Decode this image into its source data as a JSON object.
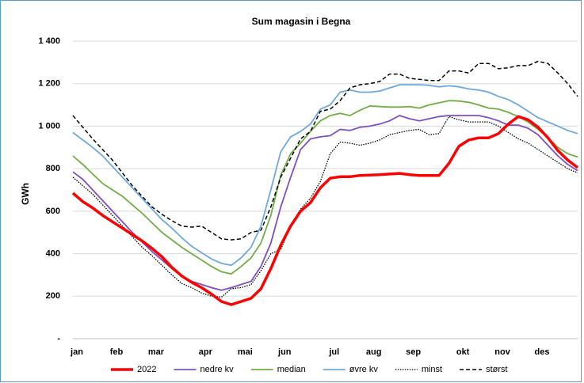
{
  "chart_data": {
    "type": "line",
    "title": "Sum magasin i Begna",
    "y_label": "GWh",
    "categories": [
      "jan",
      null,
      null,
      null,
      "feb",
      null,
      null,
      null,
      "mar",
      null,
      null,
      null,
      null,
      "apr",
      null,
      null,
      null,
      "mai",
      null,
      null,
      null,
      "jun",
      null,
      null,
      null,
      null,
      "jul",
      null,
      null,
      null,
      "aug",
      null,
      null,
      null,
      "sep",
      null,
      null,
      null,
      null,
      "okt",
      null,
      null,
      null,
      "nov",
      null,
      null,
      null,
      "des",
      null,
      null,
      null,
      null
    ],
    "ylim": [
      0,
      1400
    ],
    "yticks": [
      {
        "value": 0,
        "label": "-"
      },
      200,
      400,
      600,
      800,
      {
        "value": 1000,
        "label": "1 000"
      },
      {
        "value": 1200,
        "label": "1 200"
      },
      {
        "value": 1400,
        "label": "1 400"
      }
    ],
    "grid": true,
    "legend": "bottom",
    "series": [
      {
        "name": "2022",
        "color": "#ff0000",
        "style": "solid-thick",
        "values": [
          685,
          645,
          615,
          580,
          550,
          520,
          490,
          460,
          425,
          385,
          335,
          295,
          265,
          240,
          210,
          175,
          160,
          175,
          190,
          235,
          330,
          440,
          530,
          600,
          640,
          710,
          755,
          762,
          762,
          768,
          770,
          772,
          775,
          778,
          772,
          768,
          768,
          768,
          825,
          905,
          935,
          945,
          945,
          965,
          1010,
          1045,
          1030,
          995,
          945,
          885,
          840,
          805
        ]
      },
      {
        "name": "nedre kv",
        "color": "#7f4fc0",
        "style": "solid",
        "values": [
          785,
          750,
          700,
          650,
          600,
          550,
          500,
          455,
          410,
          370,
          330,
          295,
          270,
          255,
          240,
          228,
          240,
          255,
          270,
          340,
          450,
          620,
          760,
          890,
          940,
          950,
          955,
          985,
          980,
          995,
          1000,
          1010,
          1025,
          1050,
          1035,
          1025,
          1035,
          1045,
          1050,
          1050,
          1050,
          1050,
          1040,
          1025,
          1005,
          1005,
          990,
          960,
          910,
          860,
          820,
          790
        ]
      },
      {
        "name": "median",
        "color": "#70ad47",
        "style": "solid",
        "values": [
          860,
          820,
          775,
          730,
          700,
          670,
          630,
          590,
          545,
          500,
          465,
          430,
          400,
          370,
          340,
          315,
          305,
          340,
          380,
          450,
          580,
          770,
          870,
          920,
          975,
          1025,
          1050,
          1060,
          1050,
          1075,
          1095,
          1092,
          1090,
          1090,
          1092,
          1085,
          1100,
          1110,
          1120,
          1118,
          1112,
          1100,
          1085,
          1080,
          1065,
          1045,
          1020,
          985,
          945,
          900,
          870,
          855
        ]
      },
      {
        "name": "øvre kv",
        "color": "#6fa8dc",
        "style": "solid",
        "values": [
          970,
          935,
          900,
          860,
          810,
          760,
          710,
          660,
          610,
          560,
          520,
          475,
          435,
          405,
          375,
          355,
          345,
          380,
          430,
          530,
          700,
          880,
          950,
          975,
          1010,
          1080,
          1100,
          1160,
          1170,
          1160,
          1160,
          1165,
          1180,
          1195,
          1195,
          1195,
          1192,
          1185,
          1190,
          1185,
          1175,
          1170,
          1160,
          1140,
          1125,
          1100,
          1070,
          1040,
          1020,
          1000,
          980,
          965
        ]
      },
      {
        "name": "minst",
        "color": "#000000",
        "style": "dotted",
        "values": [
          760,
          720,
          680,
          630,
          580,
          530,
          480,
          430,
          390,
          345,
          300,
          260,
          240,
          215,
          200,
          195,
          235,
          240,
          255,
          320,
          400,
          420,
          530,
          610,
          660,
          740,
          870,
          925,
          920,
          910,
          920,
          935,
          960,
          970,
          980,
          985,
          960,
          965,
          1045,
          1030,
          1020,
          1020,
          1020,
          1000,
          970,
          940,
          920,
          890,
          860,
          830,
          800,
          780
        ]
      },
      {
        "name": "størst",
        "color": "#000000",
        "style": "dashed",
        "values": [
          1050,
          995,
          940,
          890,
          840,
          780,
          720,
          670,
          620,
          585,
          555,
          530,
          525,
          530,
          500,
          470,
          465,
          470,
          500,
          510,
          620,
          760,
          850,
          940,
          975,
          1070,
          1080,
          1120,
          1180,
          1195,
          1200,
          1210,
          1245,
          1245,
          1225,
          1220,
          1215,
          1215,
          1260,
          1260,
          1250,
          1295,
          1295,
          1270,
          1275,
          1285,
          1285,
          1305,
          1295,
          1250,
          1200,
          1140
        ]
      }
    ]
  }
}
